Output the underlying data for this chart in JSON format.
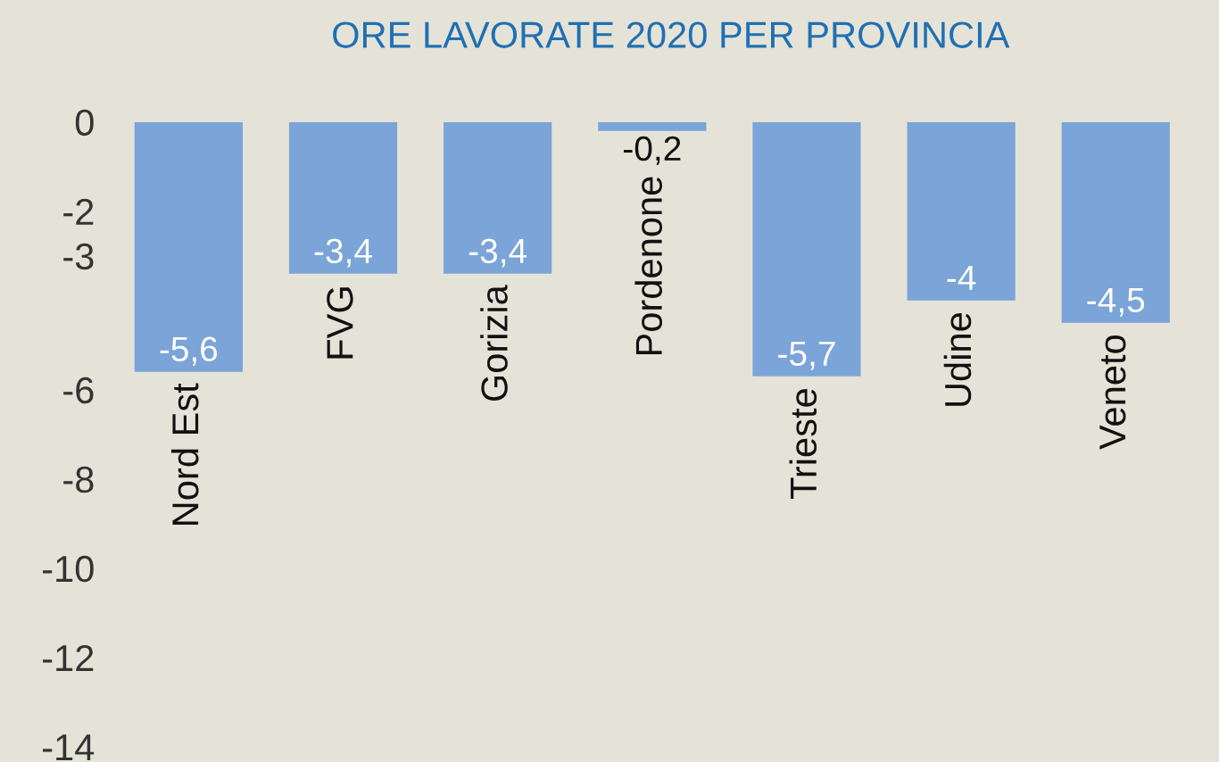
{
  "chart_data": {
    "type": "bar",
    "title": "ORE LAVORATE 2020 PER PROVINCIA",
    "categories": [
      "Nord Est",
      "FVG",
      "Gorizia",
      "Pordenone",
      "Trieste",
      "Udine",
      "Veneto"
    ],
    "values": [
      -5.6,
      -3.4,
      -3.4,
      -0.2,
      -5.7,
      -4,
      -4.5
    ],
    "value_labels": [
      "-5,6",
      "-3,4",
      "-3,4",
      "-0,2",
      "-5,7",
      "-4",
      "-4,5"
    ],
    "color": "#7ba4d8",
    "ylim": [
      -14,
      0
    ],
    "yticks": [
      0,
      -2,
      -3,
      -6,
      -8,
      -10,
      -12,
      -14
    ],
    "grid": false
  }
}
